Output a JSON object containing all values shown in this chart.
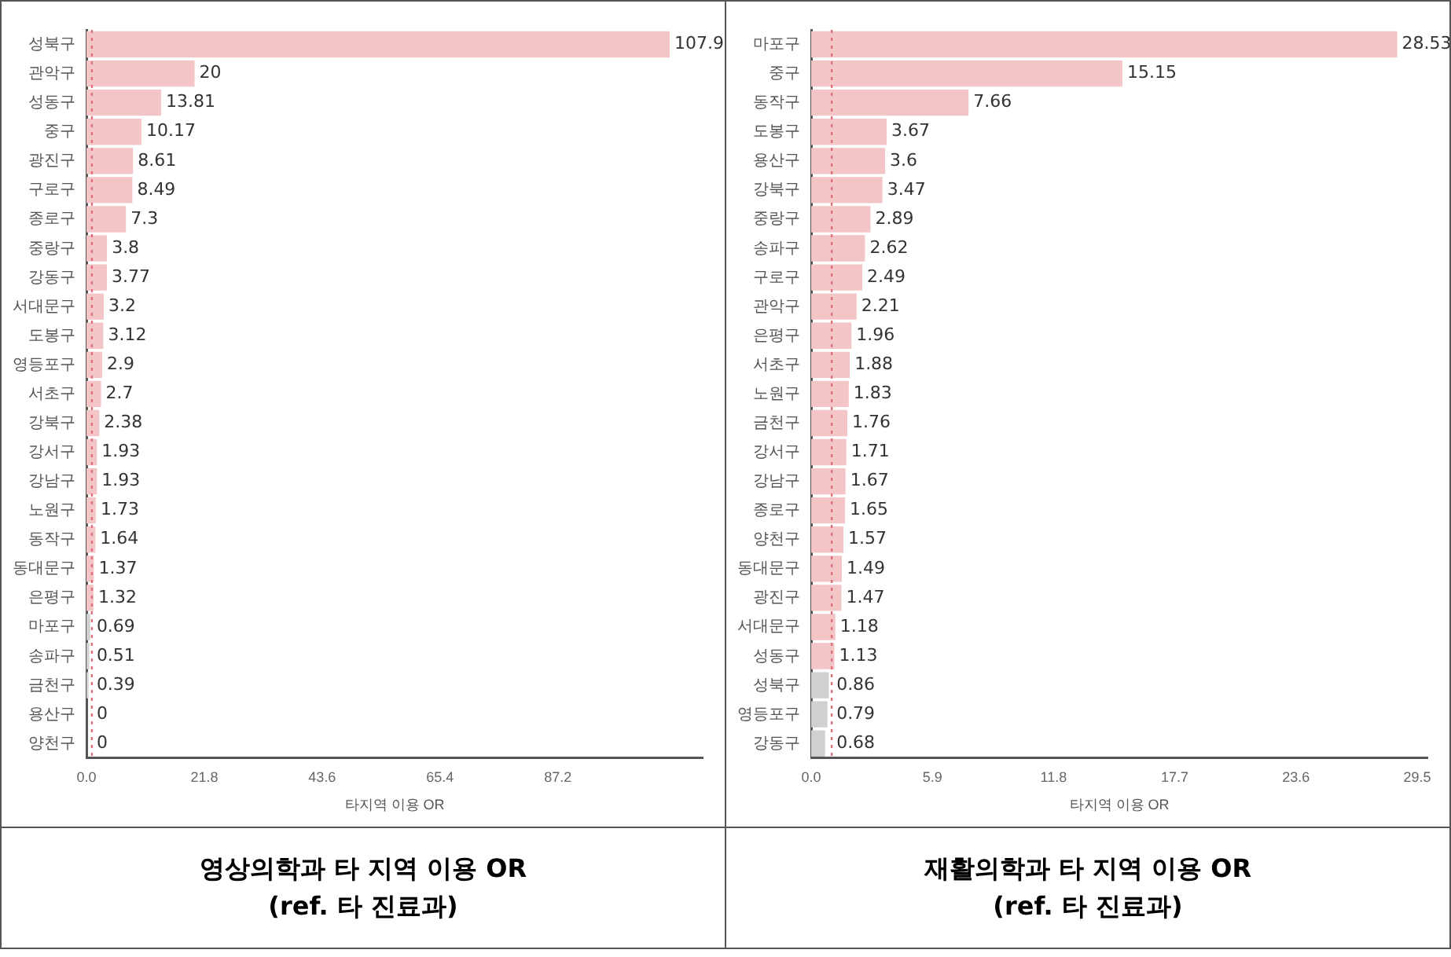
{
  "chart_data": [
    {
      "type": "bar",
      "orientation": "horizontal",
      "title": "영상의학과 타 지역 이용 OR",
      "subtitle": "(ref. 타 진료과)",
      "xlabel": "타지역 이용 OR",
      "categories": [
        "성북구",
        "관악구",
        "성동구",
        "중구",
        "광진구",
        "구로구",
        "종로구",
        "중랑구",
        "강동구",
        "서대문구",
        "도봉구",
        "영등포구",
        "서초구",
        "강북구",
        "강서구",
        "강남구",
        "노원구",
        "동작구",
        "동대문구",
        "은평구",
        "마포구",
        "송파구",
        "금천구",
        "용산구",
        "양천구"
      ],
      "values": [
        107.9,
        20,
        13.81,
        10.17,
        8.61,
        8.49,
        7.3,
        3.8,
        3.77,
        3.2,
        3.12,
        2.9,
        2.7,
        2.38,
        1.93,
        1.93,
        1.73,
        1.64,
        1.37,
        1.32,
        0.69,
        0.51,
        0.39,
        0,
        0
      ],
      "colors": [
        "#f4c5c7",
        "#f4c5c7",
        "#f4c5c7",
        "#f4c5c7",
        "#f4c5c7",
        "#f4c5c7",
        "#f4c5c7",
        "#f4c5c7",
        "#f4c5c7",
        "#f4c5c7",
        "#f4c5c7",
        "#f4c5c7",
        "#f4c5c7",
        "#f4c5c7",
        "#f4c5c7",
        "#f4c5c7",
        "#f4c5c7",
        "#f4c5c7",
        "#f4c5c7",
        "#f4c5c7",
        "#d0d0d0",
        "#d0d0d0",
        "#d0d0d0",
        "#d0d0d0",
        "#d0d0d0"
      ],
      "xlim": [
        0,
        114
      ],
      "xticks": [
        {
          "value": 0,
          "label": "0.0"
        },
        21.8,
        43.6,
        65.4,
        87.2
      ],
      "ref_lines": [
        {
          "axis": "x",
          "value": 1,
          "color": "#e0707a",
          "line_style": "dotted"
        }
      ],
      "data_labels": true,
      "grid": false,
      "legend": false
    },
    {
      "type": "bar",
      "orientation": "horizontal",
      "title": "재활의학과 타 지역 이용 OR",
      "subtitle": "(ref. 타 진료과)",
      "xlabel": "타지역 이용 OR",
      "categories": [
        "마포구",
        "중구",
        "동작구",
        "도봉구",
        "용산구",
        "강북구",
        "중랑구",
        "송파구",
        "구로구",
        "관악구",
        "은평구",
        "서초구",
        "노원구",
        "금천구",
        "강서구",
        "강남구",
        "종로구",
        "양천구",
        "동대문구",
        "광진구",
        "서대문구",
        "성동구",
        "성북구",
        "영등포구",
        "강동구"
      ],
      "values": [
        28.53,
        15.15,
        7.66,
        3.67,
        3.6,
        3.47,
        2.89,
        2.62,
        2.49,
        2.21,
        1.96,
        1.88,
        1.83,
        1.76,
        1.71,
        1.67,
        1.65,
        1.57,
        1.49,
        1.47,
        1.18,
        1.13,
        0.86,
        0.79,
        0.68
      ],
      "colors": [
        "#f4c5c7",
        "#f4c5c7",
        "#f4c5c7",
        "#f4c5c7",
        "#f4c5c7",
        "#f4c5c7",
        "#f4c5c7",
        "#f4c5c7",
        "#f4c5c7",
        "#f4c5c7",
        "#f4c5c7",
        "#f4c5c7",
        "#f4c5c7",
        "#f4c5c7",
        "#f4c5c7",
        "#f4c5c7",
        "#f4c5c7",
        "#f4c5c7",
        "#f4c5c7",
        "#f4c5c7",
        "#f4c5c7",
        "#f4c5c7",
        "#d0d0d0",
        "#d0d0d0",
        "#d0d0d0"
      ],
      "xlim": [
        0,
        30
      ],
      "xticks": [
        {
          "value": 0,
          "label": "0.0"
        },
        5.9,
        11.8,
        17.7,
        23.6,
        29.5
      ],
      "ref_lines": [
        {
          "axis": "x",
          "value": 1,
          "color": "#e0707a",
          "line_style": "dotted"
        }
      ],
      "data_labels": true,
      "grid": false,
      "legend": false
    }
  ]
}
